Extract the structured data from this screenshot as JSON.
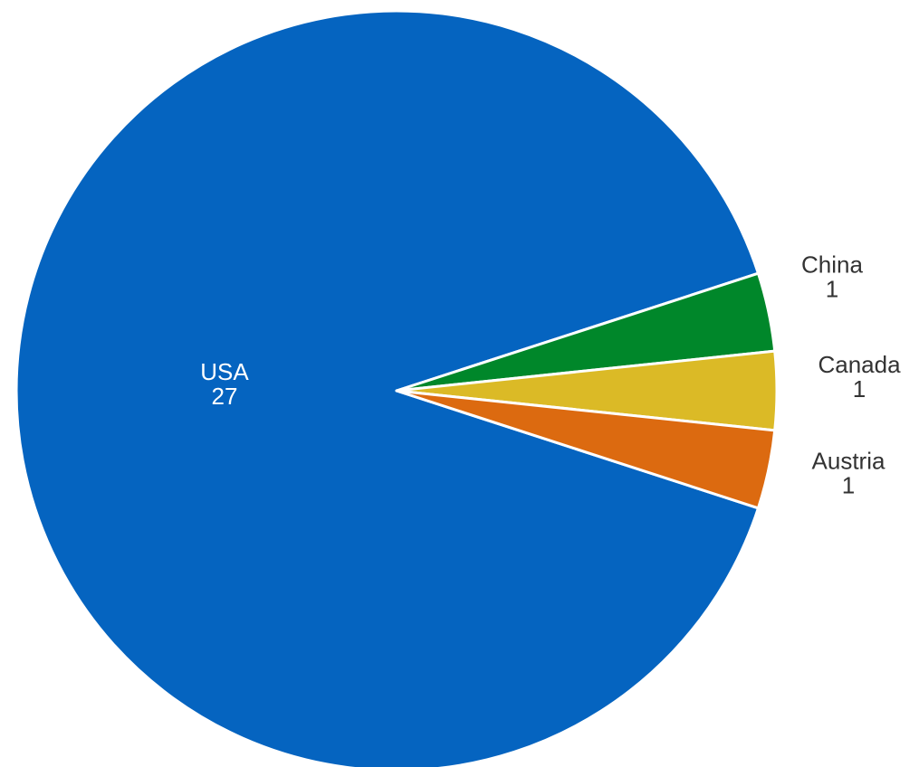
{
  "chart_data": {
    "type": "pie",
    "title": "",
    "slices": [
      {
        "label": "USA",
        "value": 27,
        "display_value": "27",
        "color": "#0564c0"
      },
      {
        "label": "China",
        "value": 1,
        "display_value": "1",
        "color": "#00872a"
      },
      {
        "label": "Canada",
        "value": 1,
        "display_value": "1",
        "color": "#dbba26"
      },
      {
        "label": "Austria",
        "value": 1,
        "display_value": "1",
        "color": "#dc6a10"
      }
    ]
  }
}
